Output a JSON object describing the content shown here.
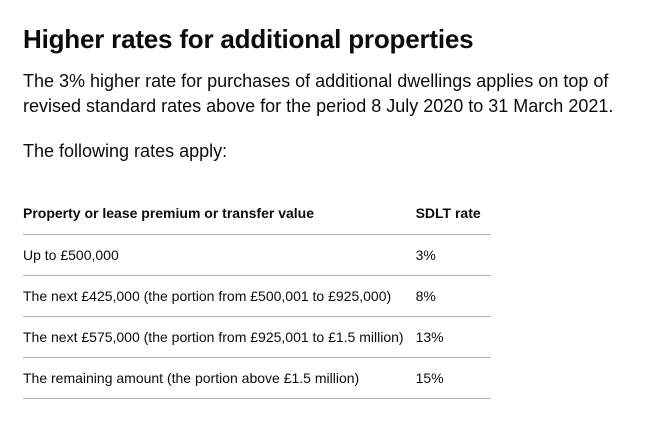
{
  "section": {
    "heading": "Higher rates for additional properties",
    "intro": "The 3% higher rate for purchases of additional dwellings applies on top of revised standard rates above for the period 8 July 2020 to 31 March 2021.",
    "following": "The following rates apply:"
  },
  "rates_table": {
    "headers": [
      "Property or lease premium or transfer value",
      "SDLT rate"
    ],
    "rows": [
      {
        "band": "Up to £500,000",
        "rate": "3%"
      },
      {
        "band": "The next £425,000 (the portion from £500,001 to £925,000)",
        "rate": "8%"
      },
      {
        "band": "The next £575,000 (the portion from £925,001 to £1.5 million)",
        "rate": "13%"
      },
      {
        "band": "The remaining amount (the portion above £1.5 million)",
        "rate": "15%"
      }
    ]
  },
  "colors": {
    "text": "#0b0c0c",
    "border": "#b1b4b6",
    "background": "#ffffff"
  }
}
